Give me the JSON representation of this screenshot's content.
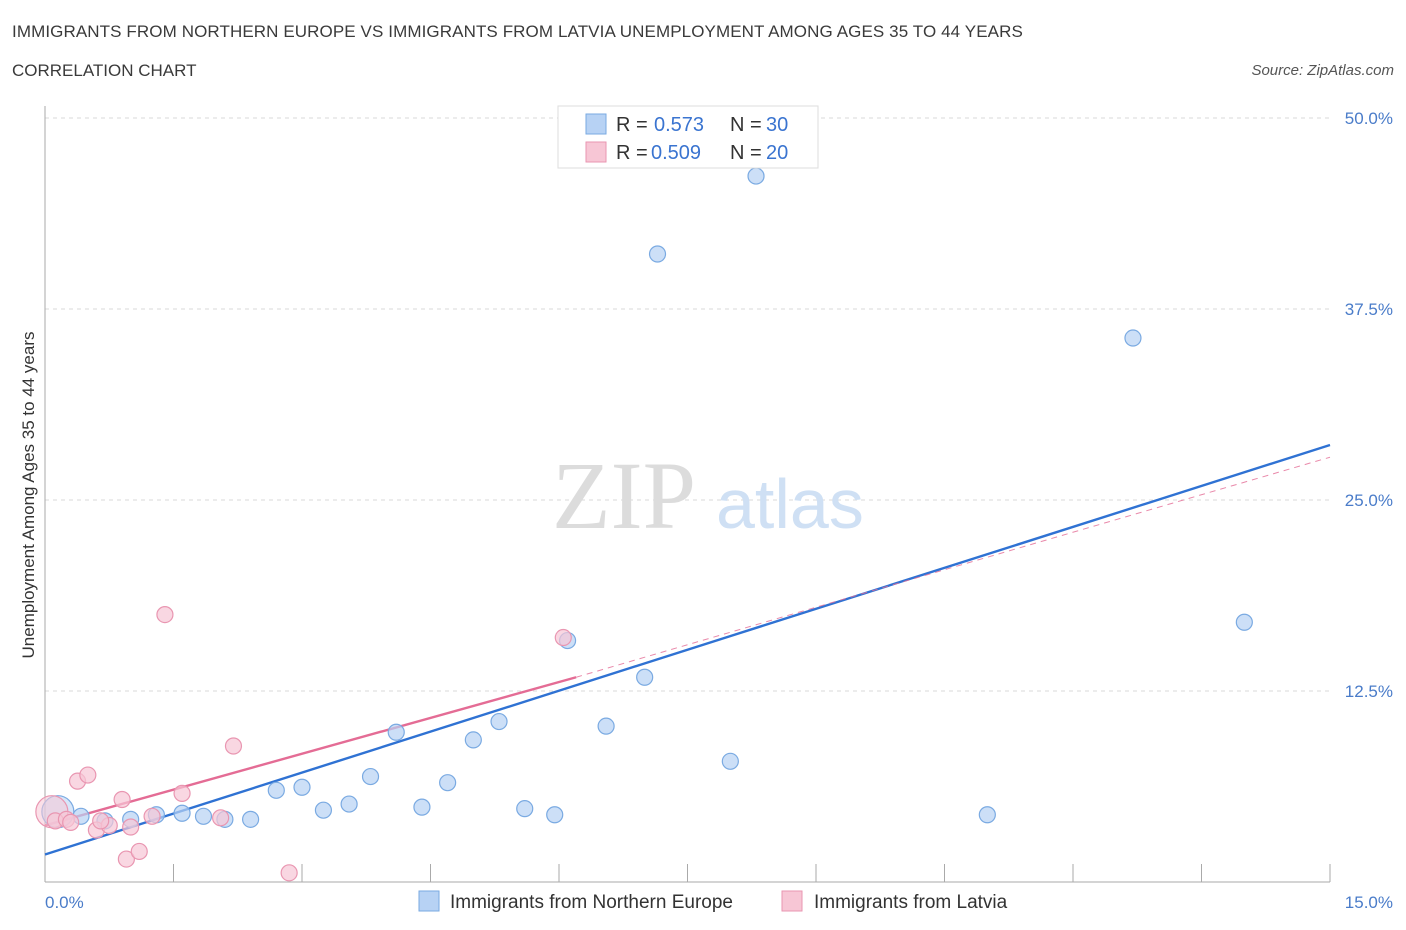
{
  "header": {
    "title": "IMMIGRANTS FROM NORTHERN EUROPE VS IMMIGRANTS FROM LATVIA UNEMPLOYMENT AMONG AGES 35 TO 44 YEARS",
    "subtitle": "CORRELATION CHART",
    "source": "Source: ZipAtlas.com"
  },
  "watermark": {
    "zip": "ZIP",
    "atlas": "atlas"
  },
  "colors": {
    "blue_fill": "#b7d2f4",
    "blue_stroke": "#7aaae2",
    "blue_line": "#2f72d3",
    "pink_fill": "#f7c6d5",
    "pink_stroke": "#e996b1",
    "pink_line": "#e46c95",
    "grid": "#d8d8d8",
    "tick_text": "#4a7cc9"
  },
  "chart_data": {
    "type": "scatter",
    "title": "IMMIGRANTS FROM NORTHERN EUROPE VS IMMIGRANTS FROM LATVIA UNEMPLOYMENT AMONG AGES 35 TO 44 YEARS",
    "xlabel": "",
    "ylabel": "Unemployment Among Ages 35 to 44 years",
    "xlim": [
      0,
      15
    ],
    "ylim": [
      0,
      50
    ],
    "x_tick_labels": [
      "0.0%",
      "15.0%"
    ],
    "y_ticks": [
      12.5,
      25.0,
      37.5,
      50.0
    ],
    "y_tick_labels": [
      "12.5%",
      "25.0%",
      "37.5%",
      "50.0%"
    ],
    "grid": true,
    "legend": {
      "position": "top-center",
      "entries": [
        {
          "r_label": "R =",
          "r": "0.573",
          "n_label": "N =",
          "n": "30"
        },
        {
          "r_label": "R =",
          "r": "0.509",
          "n_label": "N =",
          "n": "20"
        }
      ]
    },
    "series": [
      {
        "name": "Immigrants from Northern Europe",
        "color": "blue",
        "points": [
          {
            "x": 0.15,
            "y": 4.6,
            "big": true
          },
          {
            "x": 0.42,
            "y": 4.3
          },
          {
            "x": 0.7,
            "y": 4.0
          },
          {
            "x": 1.0,
            "y": 4.1
          },
          {
            "x": 1.3,
            "y": 4.4
          },
          {
            "x": 1.6,
            "y": 4.5
          },
          {
            "x": 1.85,
            "y": 4.3
          },
          {
            "x": 2.1,
            "y": 4.1
          },
          {
            "x": 2.4,
            "y": 4.1
          },
          {
            "x": 2.7,
            "y": 6.0
          },
          {
            "x": 3.0,
            "y": 6.2
          },
          {
            "x": 3.25,
            "y": 4.7
          },
          {
            "x": 3.55,
            "y": 5.1
          },
          {
            "x": 3.8,
            "y": 6.9
          },
          {
            "x": 4.1,
            "y": 9.8
          },
          {
            "x": 4.4,
            "y": 4.9
          },
          {
            "x": 4.7,
            "y": 6.5
          },
          {
            "x": 5.0,
            "y": 9.3
          },
          {
            "x": 5.3,
            "y": 10.5
          },
          {
            "x": 5.6,
            "y": 4.8
          },
          {
            "x": 5.95,
            "y": 4.4
          },
          {
            "x": 6.1,
            "y": 15.8
          },
          {
            "x": 6.55,
            "y": 10.2
          },
          {
            "x": 7.0,
            "y": 13.4
          },
          {
            "x": 7.15,
            "y": 41.1
          },
          {
            "x": 8.0,
            "y": 7.9
          },
          {
            "x": 8.3,
            "y": 46.2
          },
          {
            "x": 11.0,
            "y": 4.4
          },
          {
            "x": 12.7,
            "y": 35.6
          },
          {
            "x": 14.0,
            "y": 17.0
          }
        ],
        "trend": {
          "x0": 0,
          "y0": 1.8,
          "x1": 15,
          "y1": 28.6
        }
      },
      {
        "name": "Immigrants from Latvia",
        "color": "pink",
        "points": [
          {
            "x": 0.08,
            "y": 4.6,
            "big": true
          },
          {
            "x": 0.12,
            "y": 4.0
          },
          {
            "x": 0.25,
            "y": 4.1
          },
          {
            "x": 0.38,
            "y": 6.6
          },
          {
            "x": 0.5,
            "y": 7.0
          },
          {
            "x": 0.6,
            "y": 3.4
          },
          {
            "x": 0.75,
            "y": 3.7
          },
          {
            "x": 0.9,
            "y": 5.4
          },
          {
            "x": 1.0,
            "y": 3.6
          },
          {
            "x": 0.95,
            "y": 1.5
          },
          {
            "x": 1.1,
            "y": 2.0
          },
          {
            "x": 1.4,
            "y": 17.5
          },
          {
            "x": 1.6,
            "y": 5.8
          },
          {
            "x": 2.05,
            "y": 4.2
          },
          {
            "x": 2.2,
            "y": 8.9
          },
          {
            "x": 2.85,
            "y": 0.6
          },
          {
            "x": 6.05,
            "y": 16.0
          },
          {
            "x": 0.3,
            "y": 3.9
          },
          {
            "x": 0.65,
            "y": 4.0
          },
          {
            "x": 1.25,
            "y": 4.3
          }
        ],
        "trend": {
          "x0": 0,
          "y0": 3.7,
          "x1": 6.2,
          "y1": 13.4
        },
        "trend_extended": {
          "x0": 6.2,
          "y0": 13.4,
          "x1": 15,
          "y1": 27.8
        }
      }
    ]
  }
}
